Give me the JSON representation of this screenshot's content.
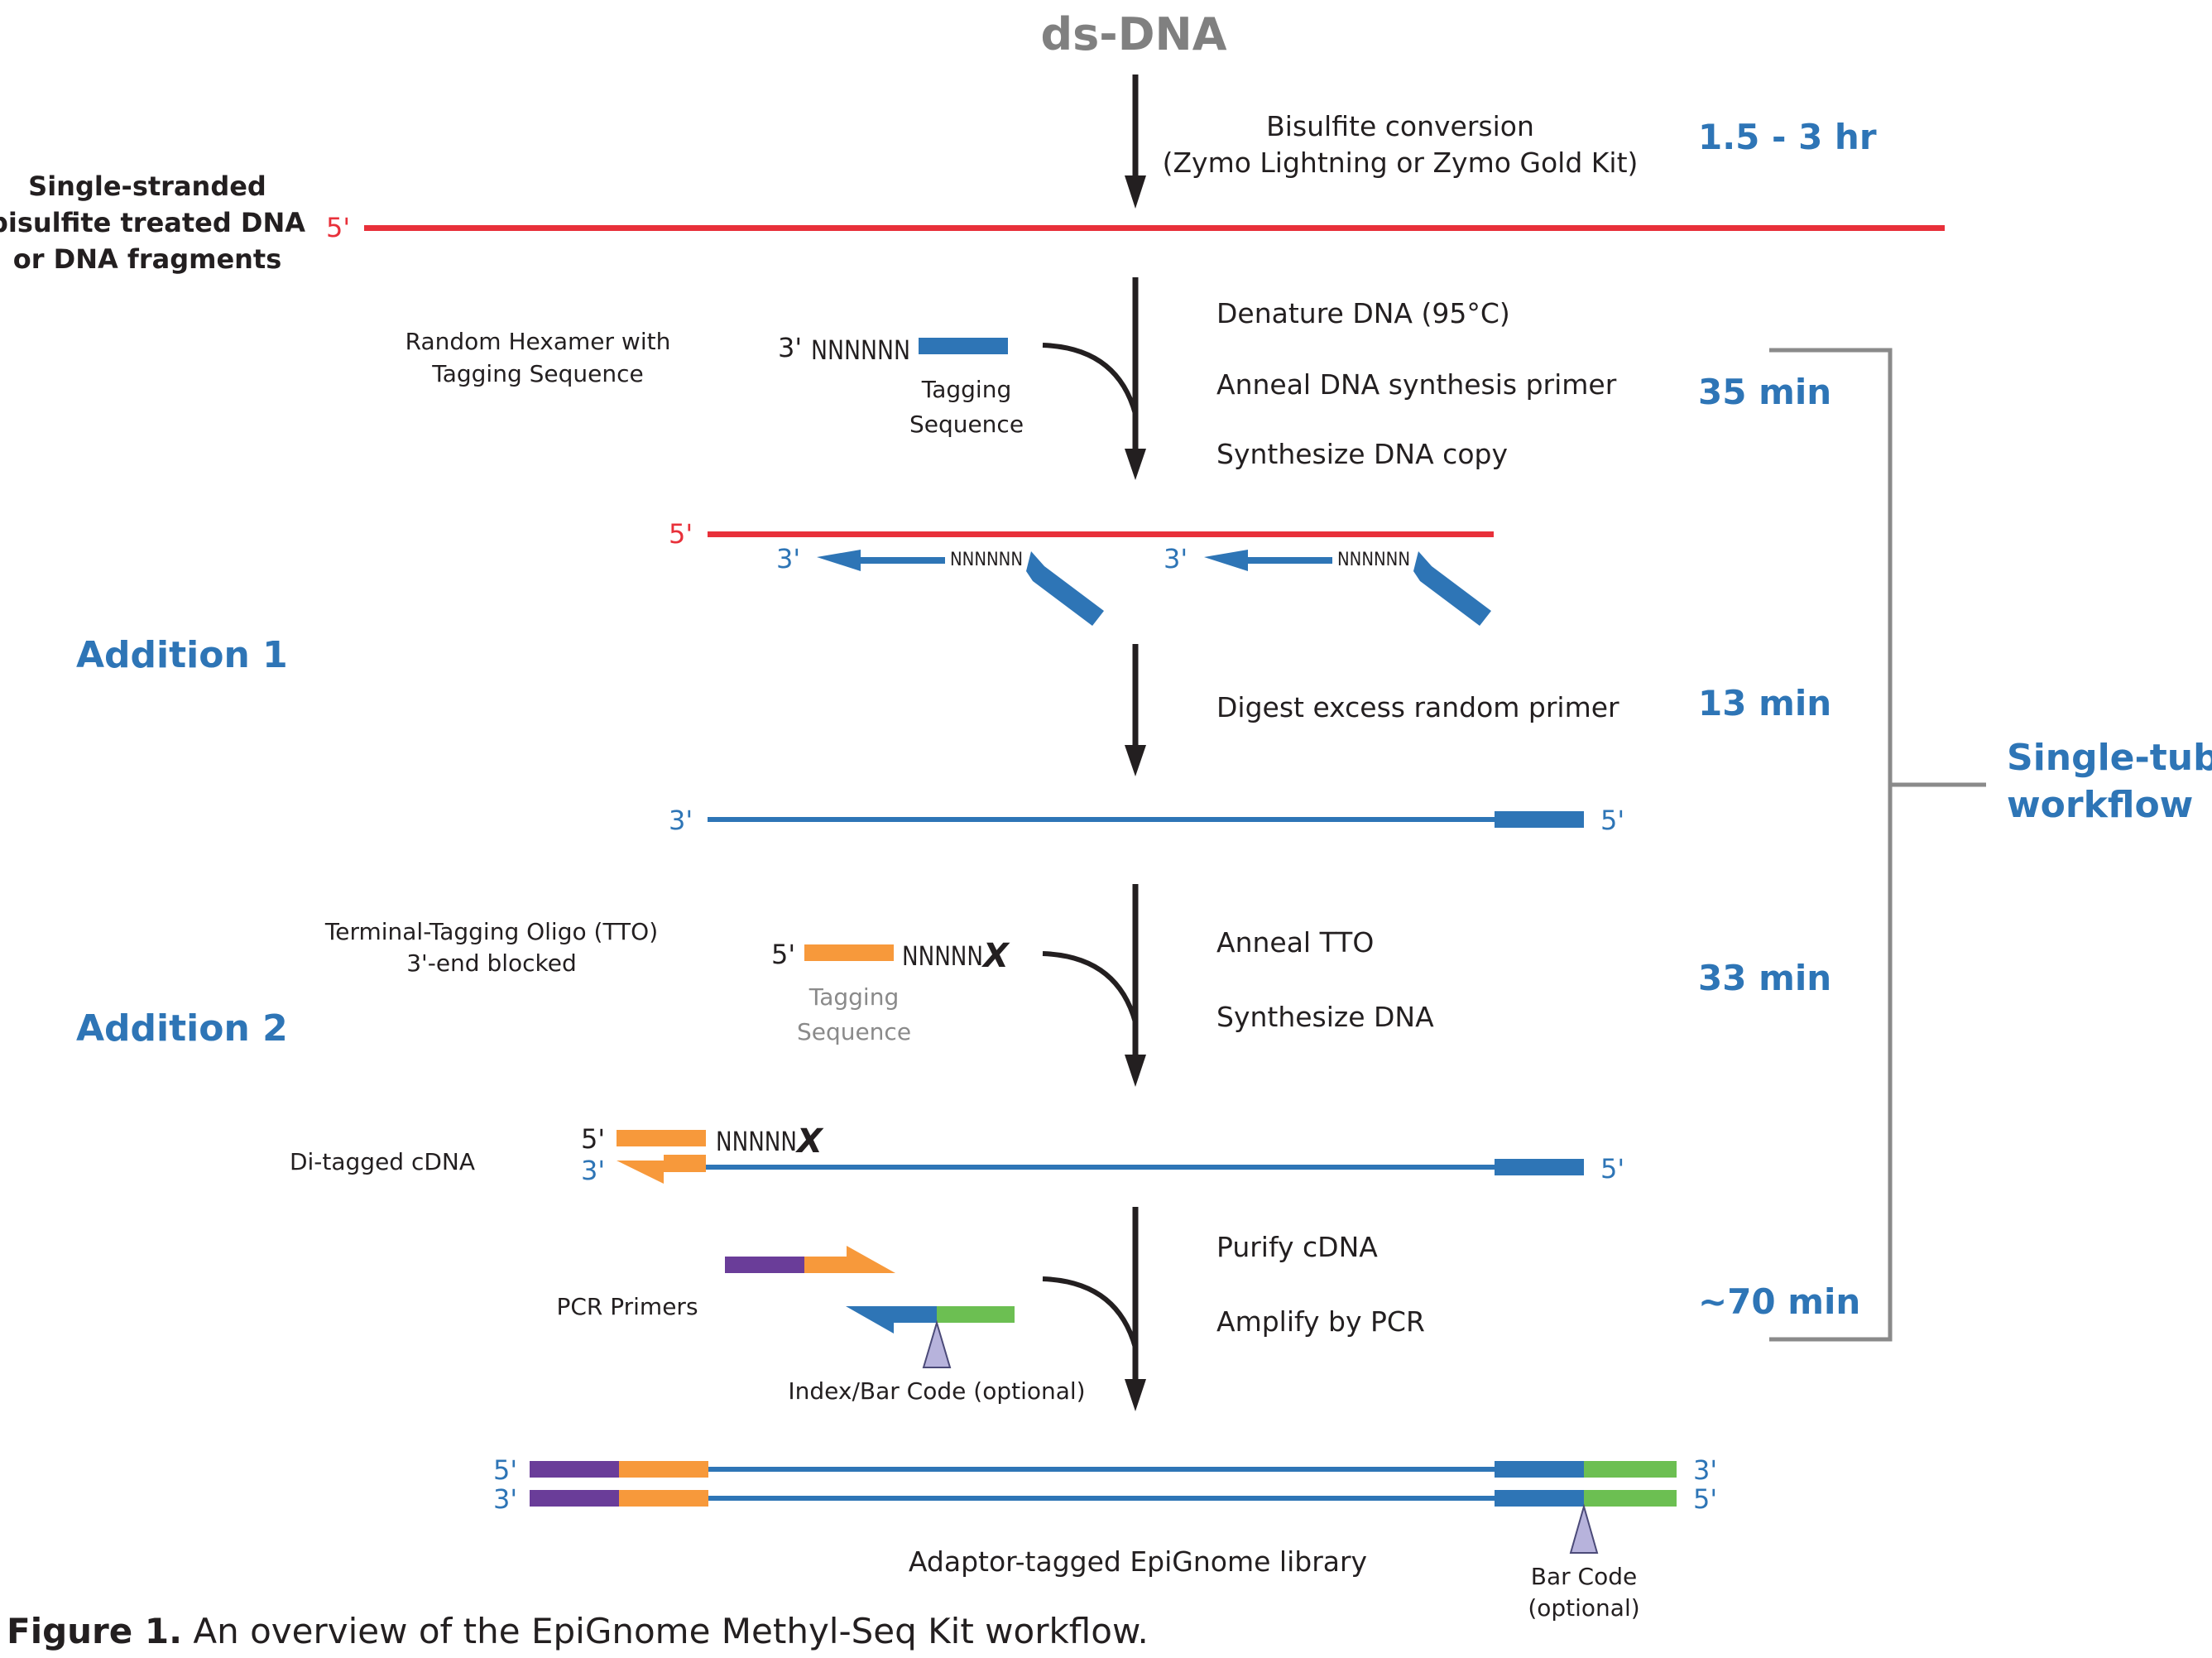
{
  "title": "ds-DNA",
  "colors": {
    "red": "#e8303a",
    "blue": "#2e75b6",
    "orange": "#f7993b",
    "purple": "#6a3d99",
    "green": "#6cbf52",
    "gray": "#8a8a8a",
    "lavender": "#b7b3dc",
    "text": "#231f20"
  },
  "steps": {
    "s1": [
      "Bisulfite conversion",
      "(Zymo Lightning or Zymo Gold Kit)"
    ],
    "s2": [
      "Denature DNA (95°C)",
      "Anneal DNA synthesis primer",
      "Synthesize DNA copy"
    ],
    "s3": [
      "Digest excess random primer"
    ],
    "s4": [
      "Anneal TTO",
      "Synthesize DNA"
    ],
    "s5": [
      "Purify cDNA",
      "Amplify by PCR"
    ]
  },
  "times": [
    "1.5 - 3 hr",
    "35 min",
    "13 min",
    "33 min",
    "~70 min"
  ],
  "side_labels": {
    "single_stranded": [
      "Single-stranded",
      "bisulfite treated DNA",
      "or DNA fragments"
    ],
    "addition1": "Addition 1",
    "addition2": "Addition 2",
    "random_hexamer": [
      "Random Hexamer with",
      "Tagging Sequence"
    ],
    "tto": [
      "Terminal-Tagging Oligo (TTO)",
      "3'-end blocked"
    ],
    "di_tagged": "Di-tagged cDNA",
    "pcr_primers": "PCR Primers"
  },
  "inline_labels": {
    "three_prime": "3'",
    "five_prime": "5'",
    "nnnnnn": "NNNNNN",
    "nnnnn": "NNNNN",
    "x": "X",
    "tagging_sequence": [
      "Tagging",
      "Sequence"
    ],
    "index_bar_code": "Index/Bar Code (optional)",
    "library": "Adaptor-tagged EpiGnome library",
    "bar_code": [
      "Bar Code",
      "(optional)"
    ]
  },
  "bracket_label": [
    "Single-tube",
    "workflow"
  ],
  "caption": {
    "bold": "Figure 1.",
    "text": " An overview of the EpiGnome Methyl-Seq Kit workflow."
  }
}
